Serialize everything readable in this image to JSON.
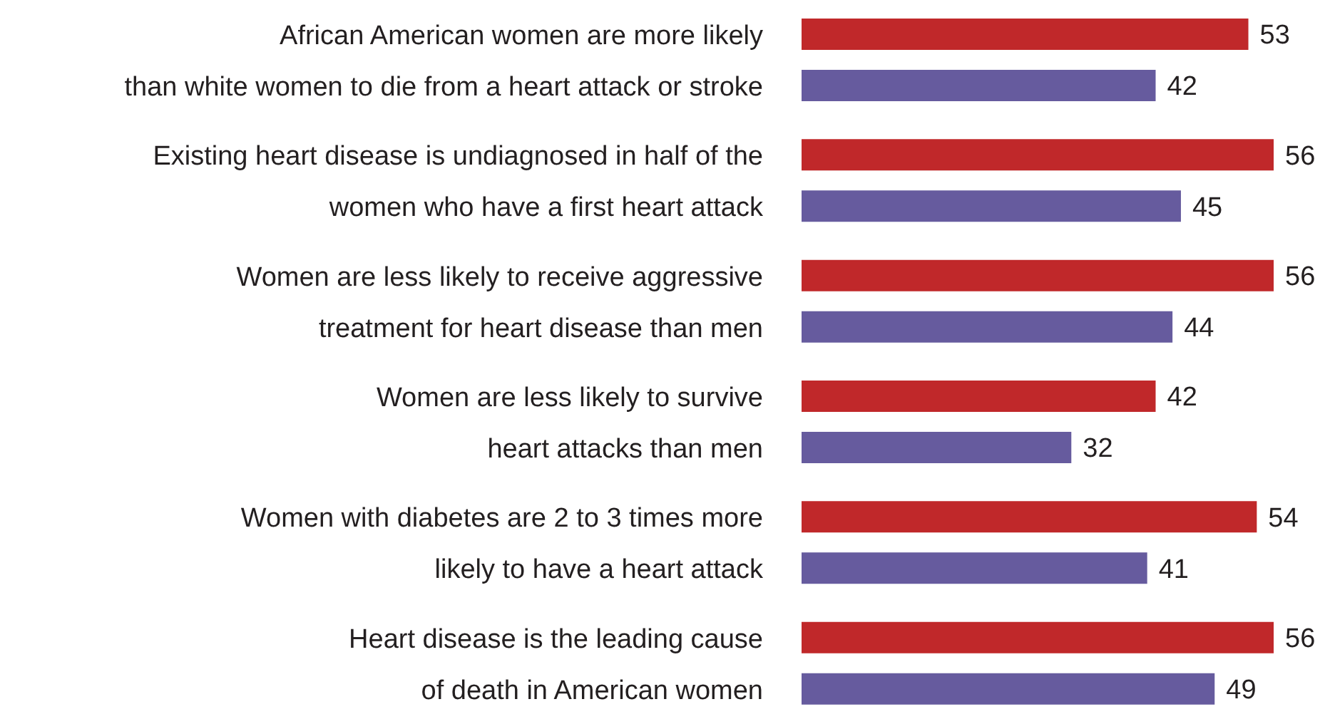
{
  "chart_data": {
    "type": "bar",
    "orientation": "horizontal",
    "data_labels": true,
    "legend": false,
    "grid": false,
    "categories": [
      "African American women are more likely\nthan white women to die from a heart attack or stroke",
      "Existing heart disease is undiagnosed in half of the\nwomen who have a first heart attack",
      "Women are less likely to receive aggressive\ntreatment for heart disease than men",
      "Women are less likely to survive\nheart attacks than men",
      "Women with diabetes are 2 to 3 times more\nlikely to have a heart attack",
      "Heart disease is the leading cause\nof death in American women"
    ],
    "series": [
      {
        "color": "#c0282a",
        "values": [
          53,
          56,
          56,
          42,
          54,
          56
        ]
      },
      {
        "color": "#665b9e",
        "values": [
          42,
          45,
          44,
          32,
          41,
          49
        ]
      }
    ]
  }
}
